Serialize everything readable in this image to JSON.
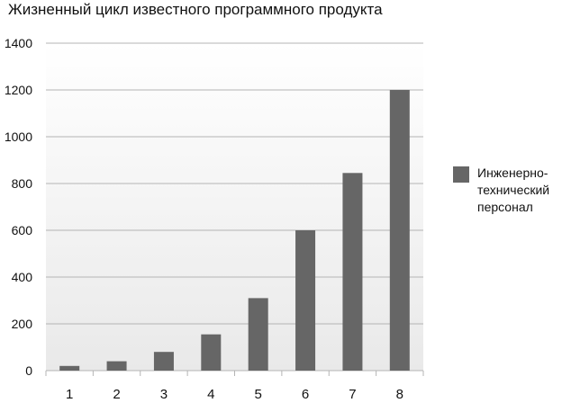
{
  "chart_data": {
    "type": "bar",
    "title": "Жизненный цикл известного программного продукта",
    "xlabel": "",
    "ylabel": "",
    "categories": [
      "1",
      "2",
      "3",
      "4",
      "5",
      "6",
      "7",
      "8"
    ],
    "series": [
      {
        "name": "Инженерно-\nтехнический\nперсонал",
        "values": [
          20,
          40,
          80,
          155,
          310,
          600,
          845,
          1200
        ],
        "color": "#666666"
      }
    ],
    "ylim": [
      0,
      1400
    ],
    "yticks": [
      "0",
      "200",
      "400",
      "600",
      "800",
      "1000",
      "1200",
      "1400"
    ],
    "grid": true,
    "legend_position": "right"
  }
}
